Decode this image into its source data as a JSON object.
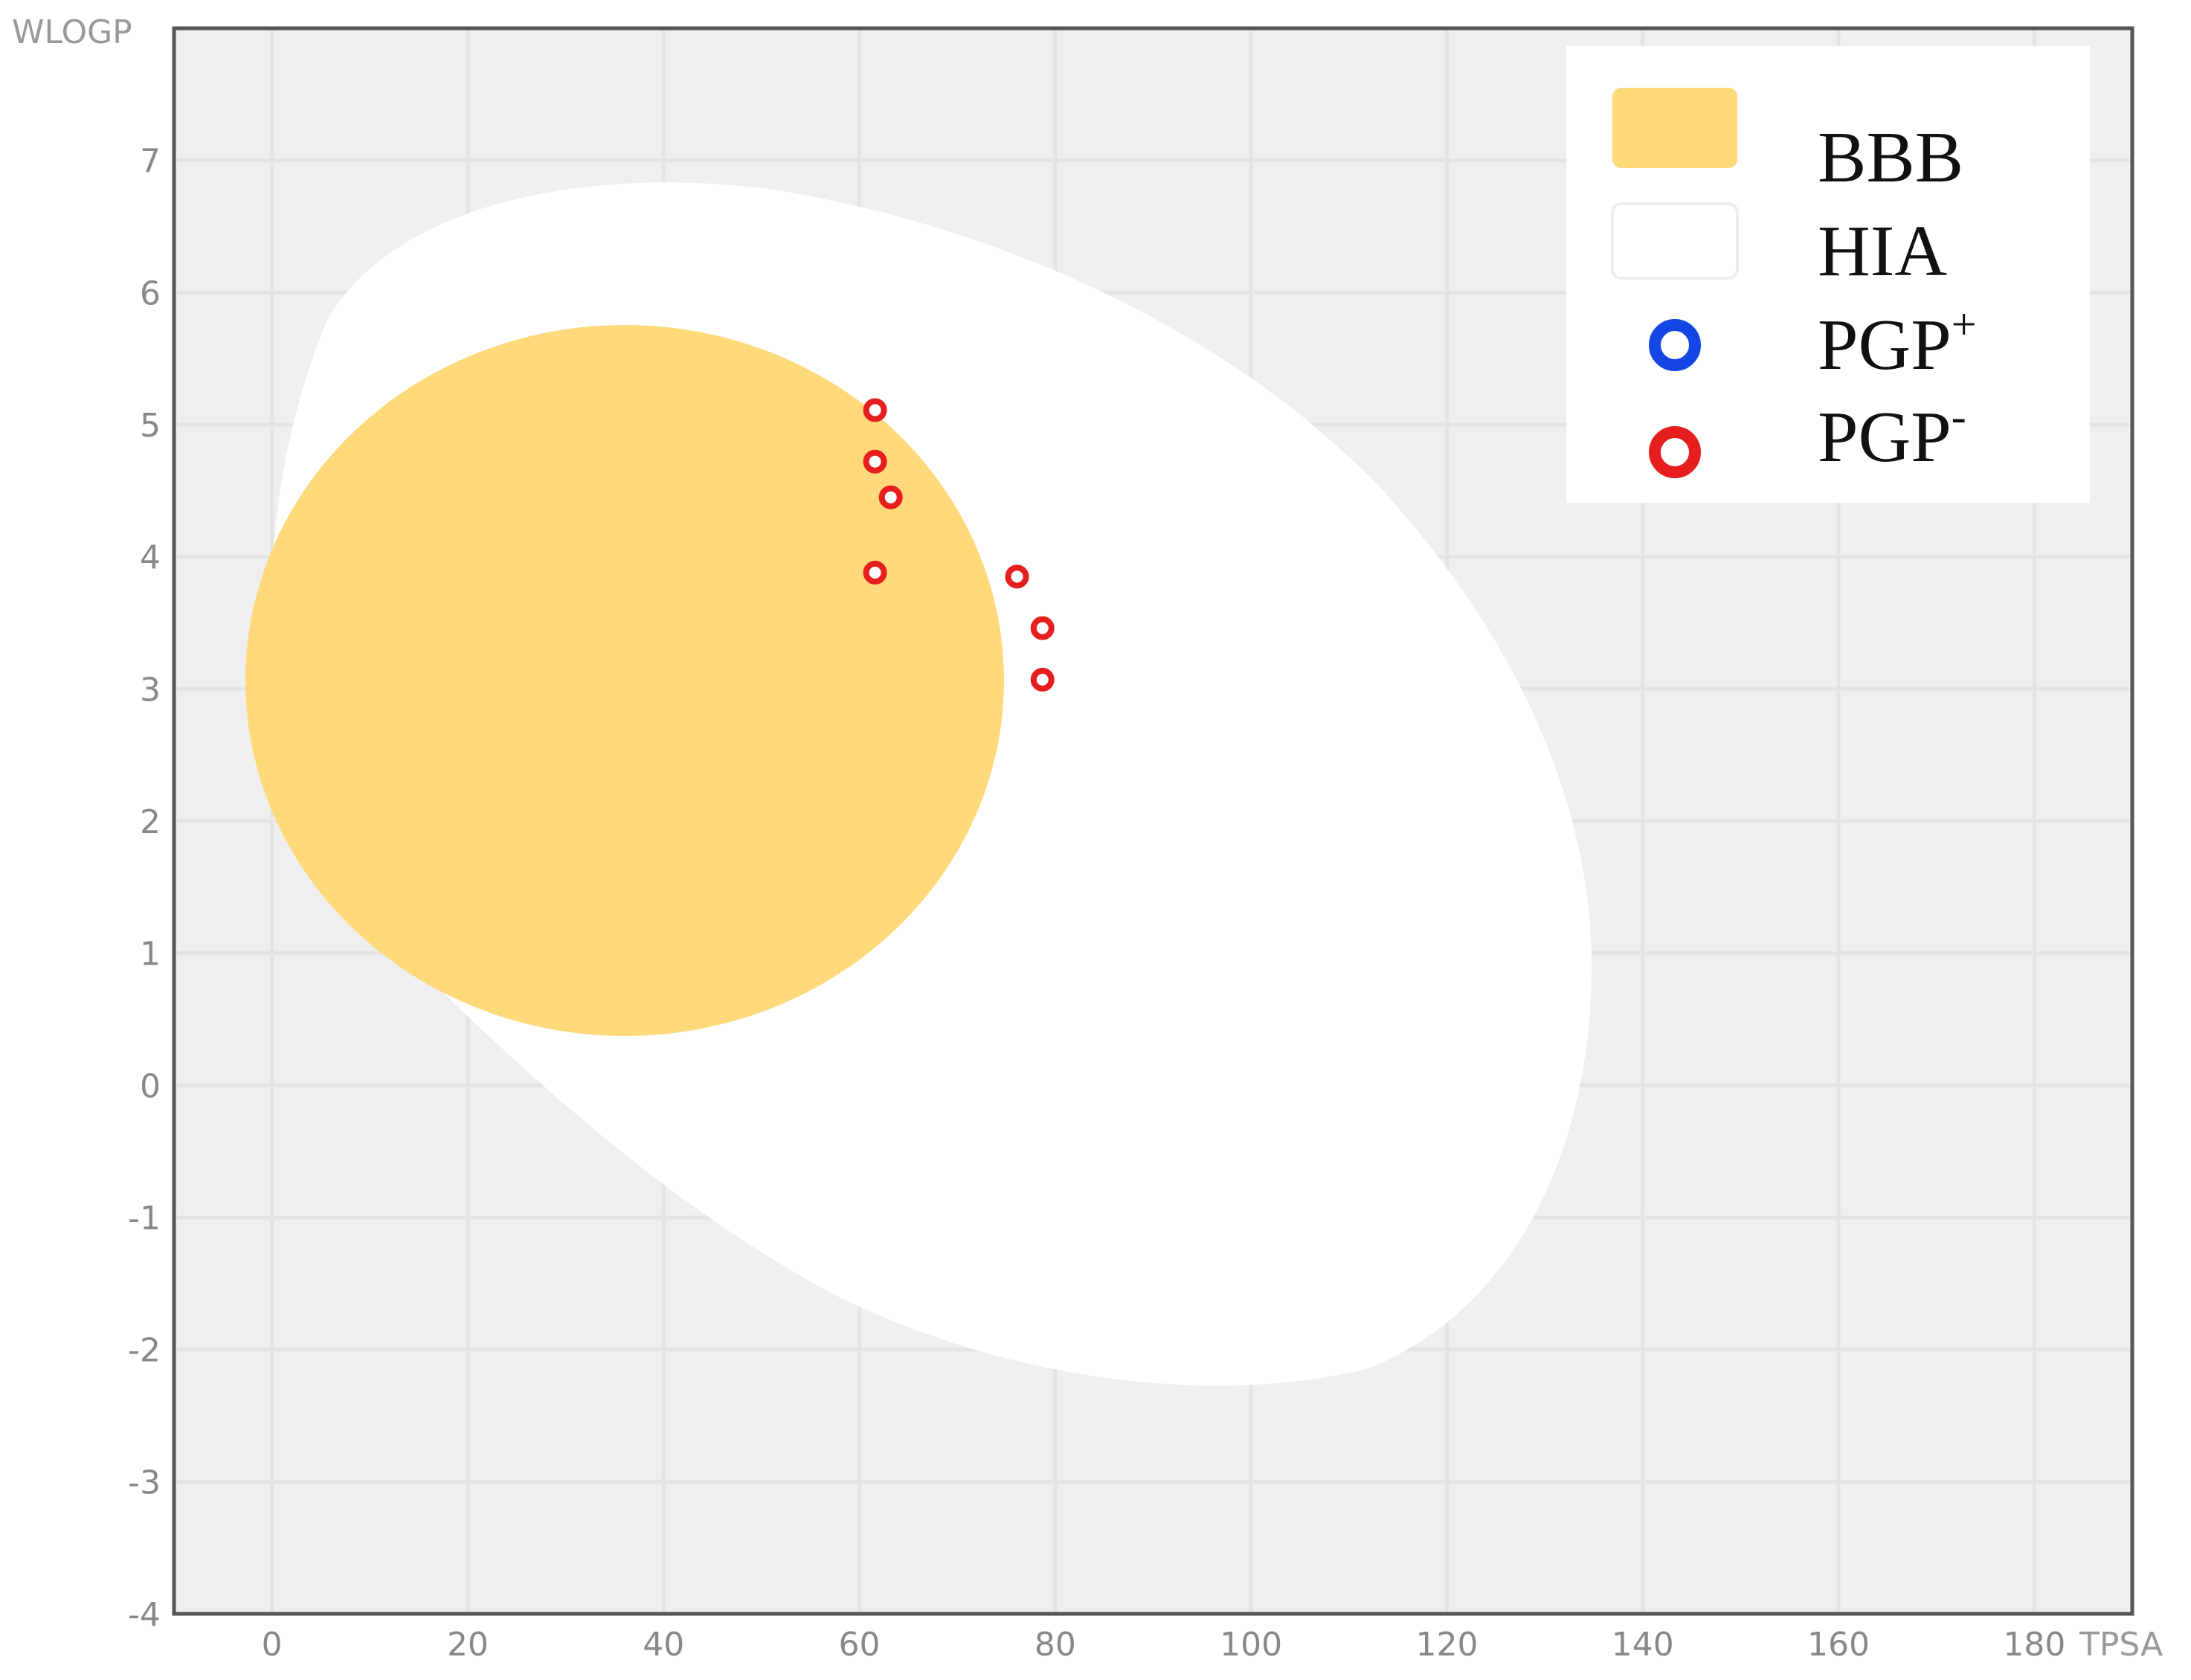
{
  "chart_data": {
    "type": "scatter",
    "xlabel": "TPSA",
    "ylabel": "WLOGP",
    "xlim": [
      -10,
      190
    ],
    "ylim": [
      -4,
      8
    ],
    "xticks": [
      "0",
      "20",
      "40",
      "60",
      "80",
      "100",
      "120",
      "140",
      "160",
      "180"
    ],
    "xtick_values": [
      0,
      20,
      40,
      60,
      80,
      100,
      120,
      140,
      160,
      180
    ],
    "yticks": [
      "7",
      "6",
      "5",
      "4",
      "3",
      "2",
      "1",
      "0",
      "-1",
      "-2",
      "-3",
      "-4"
    ],
    "ytick_values": [
      7,
      6,
      5,
      4,
      3,
      2,
      1,
      0,
      -1,
      -2,
      -3,
      -4
    ],
    "grid": true,
    "legend_position": "top-right",
    "legend": [
      {
        "label": "BBB",
        "base": "BBB",
        "sup": "",
        "symbol": "yolk-region",
        "color": "#FFD97A"
      },
      {
        "label": "HIA",
        "base": "HIA",
        "sup": "",
        "symbol": "white-region",
        "color": "#FFFFFF"
      },
      {
        "label": "PGP+",
        "base": "PGP",
        "sup": "+",
        "symbol": "circle-marker",
        "color": "#1446E6"
      },
      {
        "label": "PGP-",
        "base": "PGP",
        "sup": "-",
        "symbol": "circle-marker",
        "color": "#E61E1E"
      }
    ],
    "series": [
      {
        "name": "PGP-",
        "color": "#E61E1E",
        "points": [
          {
            "x": 61.6,
            "y": 5.11
          },
          {
            "x": 61.6,
            "y": 4.72
          },
          {
            "x": 63.2,
            "y": 4.45
          },
          {
            "x": 61.6,
            "y": 3.88
          },
          {
            "x": 76.1,
            "y": 3.85
          },
          {
            "x": 78.7,
            "y": 3.46
          },
          {
            "x": 78.7,
            "y": 3.07
          }
        ]
      }
    ],
    "colors": {
      "plot_background": "#EFEFEF",
      "hia_region": "#FFFFFF",
      "bbb_region": "#FFD97A",
      "gridline": "#E4E4E4",
      "frame": "#555555"
    }
  }
}
